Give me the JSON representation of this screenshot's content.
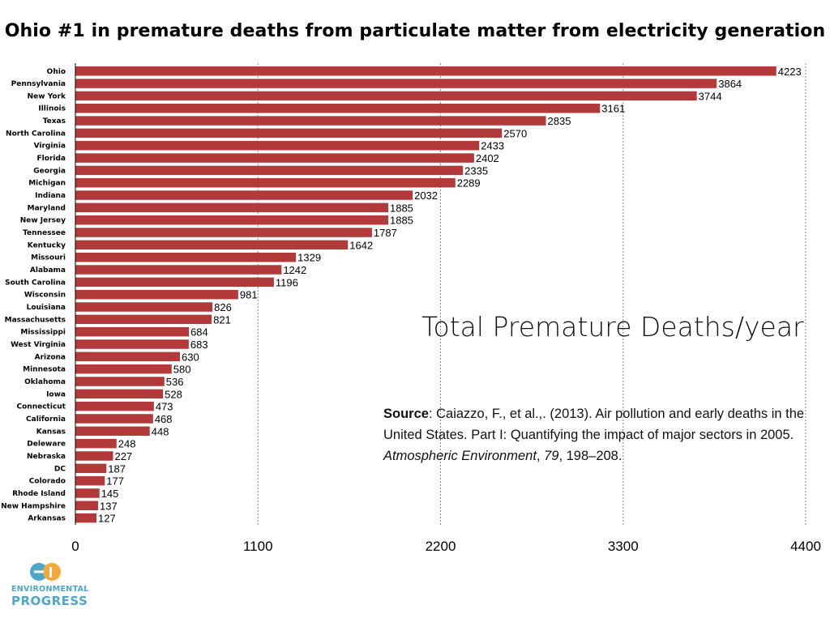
{
  "title": "Ohio #1 in premature deaths from particulate matter from electricity generation",
  "annotation": "Total Premature Deaths/year",
  "source": {
    "label": "Source",
    "text_before_journal": ": Caiazzo, F., et al.,. (2013). Air pollution and early deaths in the United States. Part I: Quantifying the impact of major sectors in 2005. ",
    "journal": "Atmospheric Environment",
    "sep": ", ",
    "volume": "79",
    "pages": ", 198–208."
  },
  "logo": {
    "mark": "ep",
    "line1": "ENVIRONMENTAL",
    "line2": "PROGRESS"
  },
  "colors": {
    "bar": "#b23a3a",
    "gridline": "#888888",
    "logo_primary": "#4ea6c9",
    "logo_secondary": "#f2a93b"
  },
  "chart_data": {
    "type": "bar",
    "orientation": "horizontal",
    "title": "Ohio #1 in premature deaths from particulate matter from electricity generation",
    "xlabel": "",
    "ylabel": "",
    "xlim": [
      0,
      4400
    ],
    "xticks": [
      0,
      1100,
      2200,
      3300,
      4400
    ],
    "grid": "vertical dashed",
    "data_labels": true,
    "categories": [
      "Ohio",
      "Pennsylvania",
      "New York",
      "Illinois",
      "Texas",
      "North Carolina",
      "Virginia",
      "Florida",
      "Georgia",
      "Michigan",
      "Indiana",
      "Maryland",
      "New Jersey",
      "Tennessee",
      "Kentucky",
      "Missouri",
      "Alabama",
      "South Carolina",
      "Wisconsin",
      "Louisiana",
      "Massachusetts",
      "Mississippi",
      "West Virginia",
      "Arizona",
      "Minnesota",
      "Oklahoma",
      "Iowa",
      "Connecticut",
      "California",
      "Kansas",
      "Deleware",
      "Nebraska",
      "DC",
      "Colorado",
      "Rhode Island",
      "New Hampshire",
      "Arkansas"
    ],
    "values": [
      4223,
      3864,
      3744,
      3161,
      2835,
      2570,
      2433,
      2402,
      2335,
      2289,
      2032,
      1885,
      1885,
      1787,
      1642,
      1329,
      1242,
      1196,
      981,
      826,
      821,
      684,
      683,
      630,
      580,
      536,
      528,
      473,
      468,
      448,
      248,
      227,
      187,
      177,
      145,
      137,
      127
    ]
  }
}
